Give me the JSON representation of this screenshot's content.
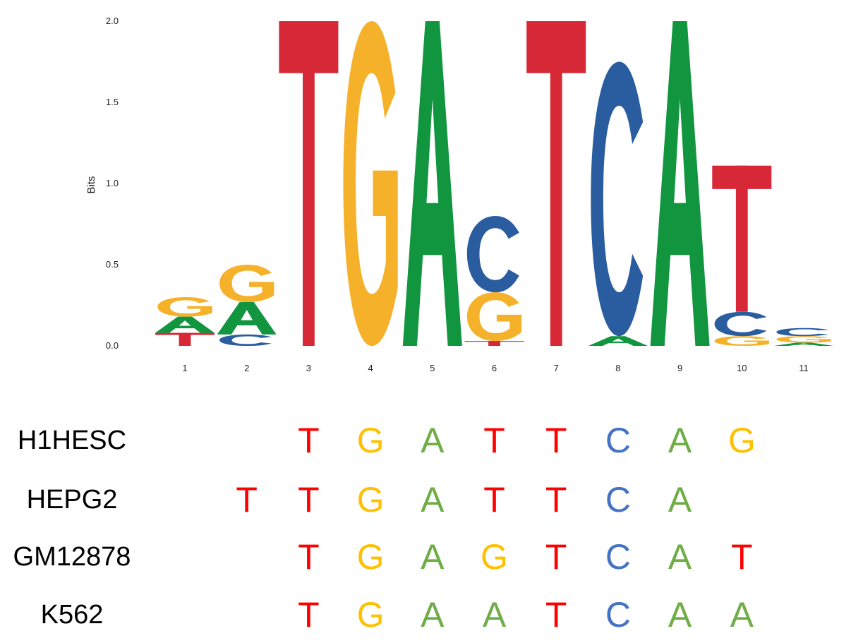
{
  "chart_data": {
    "type": "sequence-logo",
    "ylabel": "Bits",
    "ylim": [
      0,
      2.0
    ],
    "yticks": [
      "0.0",
      "0.5",
      "1.0",
      "1.5",
      "2.0"
    ],
    "positions": [
      "1",
      "2",
      "3",
      "4",
      "5",
      "6",
      "7",
      "8",
      "9",
      "10",
      "11"
    ],
    "stacks": [
      [
        {
          "base": "T",
          "bits": 0.08
        },
        {
          "base": "A",
          "bits": 0.1
        },
        {
          "base": "G",
          "bits": 0.12
        }
      ],
      [
        {
          "base": "C",
          "bits": 0.07
        },
        {
          "base": "A",
          "bits": 0.2
        },
        {
          "base": "G",
          "bits": 0.23
        }
      ],
      [
        {
          "base": "T",
          "bits": 2.0
        }
      ],
      [
        {
          "base": "G",
          "bits": 2.0
        }
      ],
      [
        {
          "base": "A",
          "bits": 2.0
        }
      ],
      [
        {
          "base": "T",
          "bits": 0.03
        },
        {
          "base": "G",
          "bits": 0.3
        },
        {
          "base": "C",
          "bits": 0.47
        }
      ],
      [
        {
          "base": "T",
          "bits": 2.0
        }
      ],
      [
        {
          "base": "A",
          "bits": 0.06
        },
        {
          "base": "C",
          "bits": 1.69
        }
      ],
      [
        {
          "base": "A",
          "bits": 2.0
        }
      ],
      [
        {
          "base": "G",
          "bits": 0.06
        },
        {
          "base": "C",
          "bits": 0.15
        },
        {
          "base": "T",
          "bits": 0.9
        }
      ],
      [
        {
          "base": "A",
          "bits": 0.02
        },
        {
          "base": "G",
          "bits": 0.04
        },
        {
          "base": "C",
          "bits": 0.05
        }
      ]
    ]
  },
  "colors": {
    "A": "#12953f",
    "C": "#2a5d9f",
    "G": "#f6b12a",
    "T": "#d72837"
  },
  "sequence_colors": {
    "A": "#70ad47",
    "C": "#4472c4",
    "G": "#ffc000",
    "T": "#ff0000"
  },
  "sequences": [
    {
      "name": "H1HESC",
      "letters": [
        "",
        "",
        "T",
        "G",
        "A",
        "T",
        "T",
        "C",
        "A",
        "G"
      ]
    },
    {
      "name": "HEPG2",
      "letters": [
        "",
        "T",
        "T",
        "G",
        "A",
        "T",
        "T",
        "C",
        "A",
        ""
      ]
    },
    {
      "name": "GM12878",
      "letters": [
        "",
        "",
        "T",
        "G",
        "A",
        "G",
        "T",
        "C",
        "A",
        "T"
      ]
    },
    {
      "name": "K562",
      "letters": [
        "",
        "",
        "T",
        "G",
        "A",
        "A",
        "T",
        "C",
        "A",
        "A"
      ]
    }
  ]
}
